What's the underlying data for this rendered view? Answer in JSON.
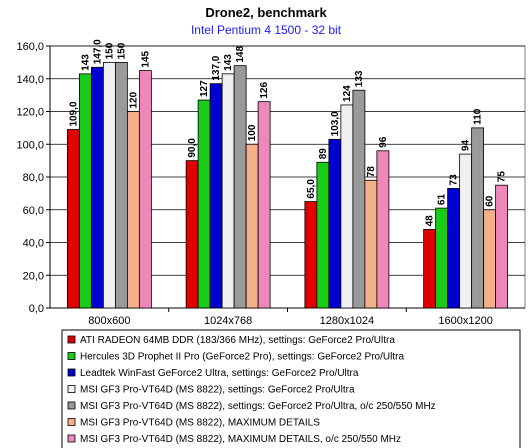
{
  "chart_data": {
    "type": "bar",
    "title": "Drone2, benchmark",
    "subtitle": "Intel Pentium 4 1500 - 32 bit",
    "categories": [
      "800x600",
      "1024x768",
      "1280x1024",
      "1600x1200"
    ],
    "ylim": [
      0,
      160
    ],
    "yticks": [
      "0,0",
      "20,0",
      "40,0",
      "60,0",
      "80,0",
      "100,0",
      "120,0",
      "140,0",
      "160,0"
    ],
    "grid": true,
    "legend_position": "bottom",
    "series": [
      {
        "name": "ATI RADEON 64MB DDR (183/366 MHz), settings: GeForce2 Pro/Ultra",
        "color": "#e00000",
        "values": [
          109.0,
          90.0,
          65.0,
          48
        ],
        "labels": [
          "109,0",
          "90,0",
          "65,0",
          "48"
        ]
      },
      {
        "name": "Hercules 3D Prophet II Pro (GeForce2 Pro), settings: GeForce2 Pro/Ultra",
        "color": "#19cc19",
        "values": [
          143,
          127,
          89,
          61
        ],
        "labels": [
          "143",
          "127",
          "89",
          "61"
        ]
      },
      {
        "name": "Leadtek WinFast GeForce2 Ultra, settings: GeForce2 Pro/Ultra",
        "color": "#0000d0",
        "values": [
          147.0,
          137.0,
          103.0,
          73
        ],
        "labels": [
          "147,0",
          "137,0",
          "103,0",
          "73"
        ]
      },
      {
        "name": "MSI GF3 Pro-VT64D (MS 8822), settings: GeForce2 Pro/Ultra",
        "color": "#f0f0f0",
        "values": [
          150,
          143,
          124,
          94
        ],
        "labels": [
          "150",
          "143",
          "124",
          "94"
        ]
      },
      {
        "name": "MSI GF3 Pro-VT64D (MS 8822), settings: GeForce2 Pro/Ultra, o/c 250/550 MHz",
        "color": "#9a9a9a",
        "values": [
          150,
          148,
          133,
          110
        ],
        "labels": [
          "150",
          "148",
          "133",
          "110"
        ]
      },
      {
        "name": "MSI GF3 Pro-VT64D (MS 8822), MAXIMUM DETAILS",
        "color": "#f4b088",
        "values": [
          120,
          100,
          78,
          60
        ],
        "labels": [
          "120",
          "100",
          "78",
          "60"
        ]
      },
      {
        "name": "MSI GF3 Pro-VT64D (MS 8822), MAXIMUM DETAILS, o/c 250/550 MHz",
        "color": "#ee88b8",
        "values": [
          145,
          126,
          96,
          75
        ],
        "labels": [
          "145",
          "126",
          "96",
          "75"
        ]
      }
    ]
  }
}
